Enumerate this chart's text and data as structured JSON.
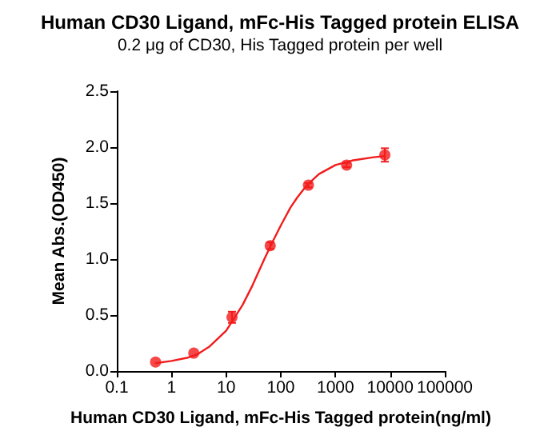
{
  "chart_data": {
    "type": "scatter",
    "title": "Human CD30 Ligand, mFc-His Tagged protein ELISA",
    "subtitle": "0.2 μg of CD30, His Tagged protein per well",
    "xlabel": "Human CD30 Ligand, mFc-His Tagged protein(ng/ml)",
    "ylabel": "Mean Abs.(OD450)",
    "log": "x",
    "grid": false,
    "marker": "circle",
    "xlim": [
      0.1,
      100000
    ],
    "xticks": [
      0.1,
      1,
      10,
      100,
      1000,
      10000,
      100000
    ],
    "ylim": [
      0,
      2.5
    ],
    "yticks": [
      {
        "value": 0,
        "label": "0.0"
      },
      0.5,
      {
        "value": 1,
        "label": "1.0"
      },
      1.5,
      {
        "value": 2,
        "label": "2.0"
      },
      2.5
    ],
    "series": [
      {
        "color": "#f21c1c",
        "x": [
          0.512,
          2.56,
          12.8,
          64,
          320,
          1600,
          8000
        ],
        "values": [
          0.08,
          0.16,
          0.48,
          1.12,
          1.66,
          1.84,
          1.93
        ],
        "errors": [
          null,
          null,
          0.05,
          0.03,
          0.02,
          0.02,
          0.06
        ]
      },
      {
        "type": "line",
        "color": "#f21c1c",
        "marker": "none",
        "line_style": "solid",
        "x": [
          0.5,
          1,
          2,
          3,
          5,
          10,
          20,
          30,
          50,
          70,
          100,
          150,
          200,
          300,
          500,
          1000,
          2000,
          5000,
          8000
        ],
        "values": [
          0.07,
          0.09,
          0.12,
          0.15,
          0.22,
          0.36,
          0.59,
          0.76,
          1.0,
          1.15,
          1.3,
          1.46,
          1.55,
          1.66,
          1.76,
          1.84,
          1.88,
          1.91,
          1.92
        ]
      }
    ]
  }
}
